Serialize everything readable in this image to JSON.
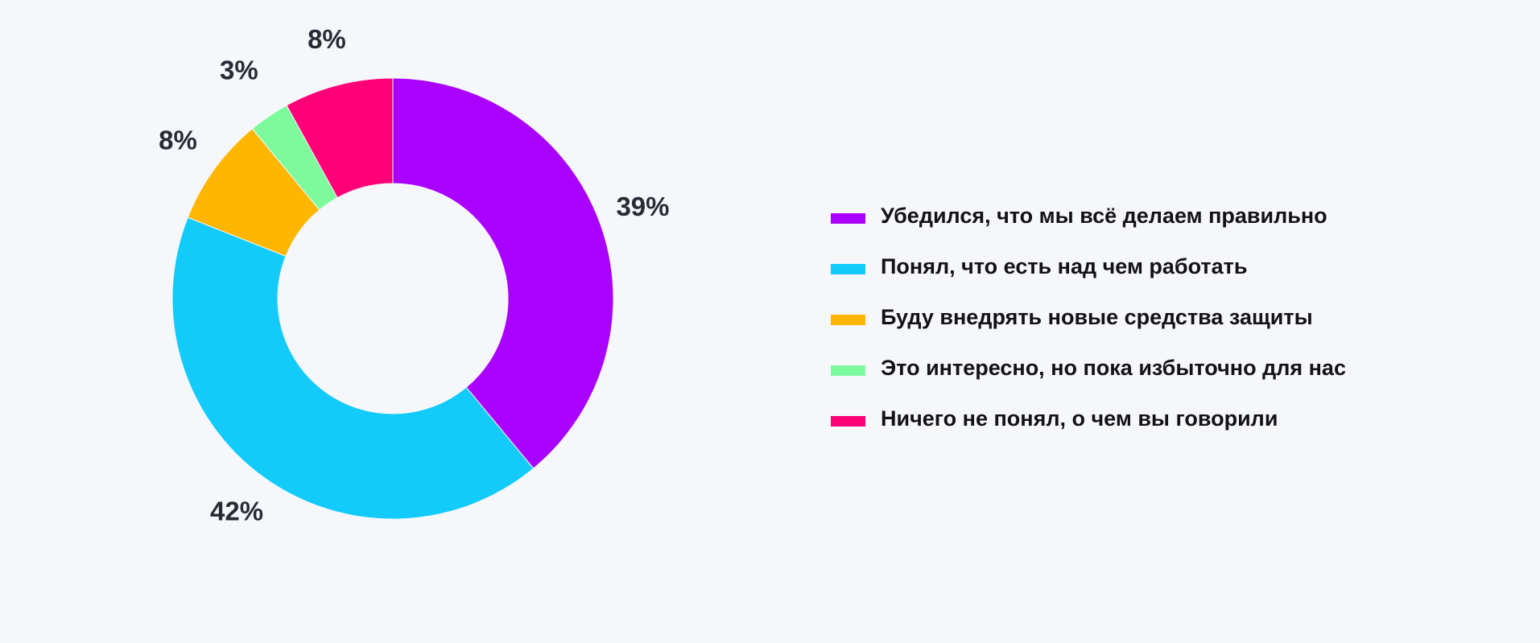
{
  "chart_data": {
    "type": "pie",
    "title": "",
    "donut": true,
    "categories": [
      "Убедился, что мы всё делаем правильно",
      "Понял, что есть над чем работать",
      "Буду внедрять новые средства защиты",
      "Это интересно, но пока избыточно для нас",
      "Ничего не понял, о чем вы говорили"
    ],
    "values": [
      39,
      42,
      8,
      3,
      8
    ],
    "labels": [
      "39%",
      "42%",
      "8%",
      "3%",
      "8%"
    ],
    "colors": [
      "#aa00ff",
      "#12cbfb",
      "#ffb600",
      "#7dfa9c",
      "#ff0077"
    ],
    "legend_position": "right"
  }
}
